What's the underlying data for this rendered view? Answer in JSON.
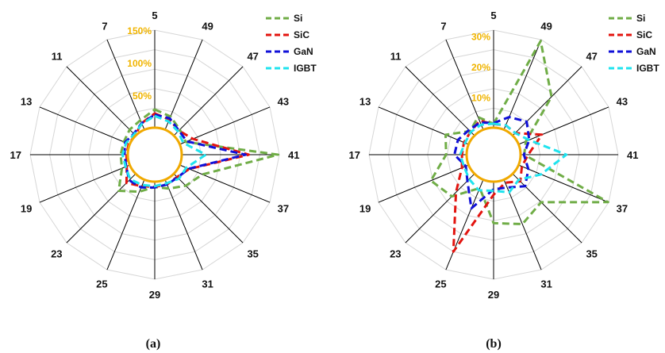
{
  "colors": {
    "Si": "#70ad47",
    "SiC": "#e3140f",
    "GaN": "#1010d8",
    "IGBT": "#1fe3ee",
    "center_ring": "#f0a900",
    "tick_text": "#f0b400",
    "grid": "#d6d6d6",
    "spoke": "#000000"
  },
  "chart_data": [
    {
      "type": "radar",
      "panel_label": "(a)",
      "categories": [
        "5",
        "49",
        "47",
        "43",
        "41",
        "37",
        "35",
        "31",
        "29",
        "25",
        "23",
        "19",
        "17",
        "13",
        "11",
        "7"
      ],
      "rmax": 150,
      "grid_levels": [
        30,
        60,
        90,
        120,
        150
      ],
      "tick_values": [
        50,
        100,
        150
      ],
      "tick_labels": [
        "50%",
        "100%",
        "150%"
      ],
      "legend": [
        "Si",
        "SiC",
        "GaN",
        "IGBT"
      ],
      "series": [
        {
          "name": "Si",
          "values": [
            28,
            22,
            13,
            10,
            148,
            38,
            26,
            15,
            8,
            20,
            37,
            13,
            11,
            10,
            13,
            16
          ]
        },
        {
          "name": "SiC",
          "values": [
            22,
            17,
            11,
            22,
            103,
            16,
            7,
            8,
            8,
            11,
            20,
            5,
            2,
            2,
            1,
            11
          ]
        },
        {
          "name": "GaN",
          "values": [
            20,
            19,
            11,
            12,
            98,
            15,
            8,
            8,
            9,
            13,
            14,
            6,
            5,
            8,
            4,
            11
          ]
        },
        {
          "name": "IGBT",
          "values": [
            18,
            14,
            9,
            6,
            37,
            11,
            11,
            6,
            7,
            9,
            12,
            7,
            8,
            6,
            3,
            10
          ]
        }
      ]
    },
    {
      "type": "radar",
      "panel_label": "(b)",
      "categories": [
        "5",
        "49",
        "47",
        "43",
        "41",
        "37",
        "35",
        "31",
        "29",
        "25",
        "23",
        "19",
        "17",
        "13",
        "11",
        "7"
      ],
      "rmax": 32,
      "grid_levels": [
        6.4,
        12.8,
        19.2,
        25.6,
        32
      ],
      "tick_values": [
        10,
        20,
        30
      ],
      "tick_labels": [
        "10%",
        "20%",
        "30%"
      ],
      "legend": [
        "Si",
        "SiC",
        "GaN",
        "IGBT"
      ],
      "series": [
        {
          "name": "Si",
          "values": [
            1.3,
            31.5,
            18,
            2.6,
            1.2,
            31.8,
            13.2,
            15.8,
            13.6,
            3,
            10.5,
            13.4,
            6.7,
            8.2,
            2.1,
            4.5
          ]
        },
        {
          "name": "SiC",
          "values": [
            1.2,
            1.6,
            1.2,
            8.3,
            2.5,
            1.2,
            3.5,
            1.1,
            4.3,
            25.6,
            8.6,
            2.4,
            1.5,
            1.7,
            1.8,
            3.2
          ]
        },
        {
          "name": "GaN",
          "values": [
            1.5,
            4.5,
            6.5,
            3.8,
            1.1,
            3.5,
            5.8,
            2.8,
            2.5,
            10.2,
            3.3,
            1,
            4,
            3.8,
            2.6,
            2.6
          ]
        },
        {
          "name": "IGBT",
          "values": [
            1.3,
            1.6,
            1.2,
            3.7,
            15,
            8,
            2.8,
            4.5,
            3,
            3.8,
            2.5,
            1.6,
            2.1,
            1.3,
            1.7,
            1.8
          ]
        }
      ]
    }
  ]
}
